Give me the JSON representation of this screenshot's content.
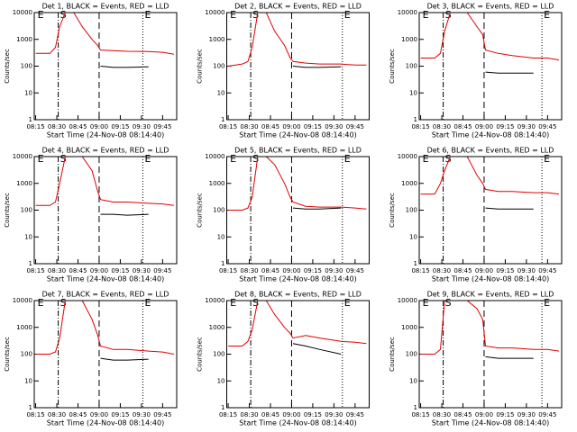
{
  "chart_data": [
    {
      "type": "line",
      "title": "Det 1, BLACK = Events, RED = LLD",
      "ylabel": "Counts/sec",
      "xlabel": "Start Time (24-Nov-08 08:14:40)",
      "ylog": true,
      "ylim": [
        1,
        10000
      ],
      "yticks": [
        1,
        10,
        100,
        1000,
        10000
      ],
      "xlim": [
        "08:14",
        "09:55"
      ],
      "xticks": [
        "08:15",
        "08:30",
        "08:45",
        "09:00",
        "09:15",
        "09:30",
        "09:45"
      ],
      "x": [
        "08:15",
        "08:25",
        "08:29",
        "08:32",
        "08:36",
        "08:42",
        "08:48",
        "08:55",
        "08:59",
        "09:01",
        "09:10",
        "09:20",
        "09:35",
        "09:45",
        "09:53"
      ],
      "series": [
        {
          "color": "#e00000",
          "values": [
            300,
            300,
            500,
            3000,
            10000,
            10000,
            3000,
            1000,
            600,
            400,
            380,
            360,
            350,
            330,
            280
          ]
        },
        {
          "color": "#000000",
          "values": [
            null,
            null,
            null,
            null,
            null,
            null,
            null,
            null,
            null,
            100,
            90,
            90,
            95,
            null,
            null
          ]
        }
      ],
      "markers": [
        {
          "label": "E",
          "x": "08:15"
        },
        {
          "label": "S",
          "x": "08:31"
        },
        {
          "label": "E",
          "x": "09:31"
        }
      ],
      "vlines": [
        {
          "x": "08:31",
          "style": "dashdot"
        },
        {
          "x": "09:00",
          "style": "dashed"
        },
        {
          "x": "09:31",
          "style": "dotted"
        }
      ]
    },
    {
      "type": "line",
      "title": "Det 2, BLACK = Events, RED = LLD",
      "ylabel": "Counts/sec",
      "xlabel": "Start Time (24-Nov-08 08:14:40)",
      "ylog": true,
      "ylim": [
        1,
        10000
      ],
      "yticks": [
        1,
        10,
        100,
        1000,
        10000
      ],
      "xlim": [
        "08:14",
        "09:55"
      ],
      "xticks": [
        "08:15",
        "08:30",
        "08:45",
        "09:00",
        "09:15",
        "09:30",
        "09:45"
      ],
      "x": [
        "08:15",
        "08:25",
        "08:29",
        "08:32",
        "08:36",
        "08:42",
        "08:48",
        "08:55",
        "08:59",
        "09:01",
        "09:10",
        "09:20",
        "09:35",
        "09:45",
        "09:53"
      ],
      "series": [
        {
          "color": "#e00000",
          "values": [
            100,
            120,
            150,
            500,
            10000,
            10000,
            2000,
            600,
            200,
            150,
            130,
            120,
            120,
            110,
            110
          ]
        },
        {
          "color": "#000000",
          "values": [
            null,
            null,
            null,
            null,
            null,
            null,
            null,
            null,
            null,
            100,
            90,
            90,
            95,
            null,
            null
          ]
        }
      ],
      "markers": [
        {
          "label": "E",
          "x": "08:15"
        },
        {
          "label": "S",
          "x": "08:31"
        },
        {
          "label": "E",
          "x": "09:36"
        }
      ],
      "vlines": [
        {
          "x": "08:31",
          "style": "dashdot"
        },
        {
          "x": "09:00",
          "style": "dashed"
        },
        {
          "x": "09:36",
          "style": "dotted"
        }
      ]
    },
    {
      "type": "line",
      "title": "Det 3, BLACK = Events, RED = LLD",
      "ylabel": "Counts/sec",
      "xlabel": "Start Time (24-Nov-08 08:14:40)",
      "ylog": true,
      "ylim": [
        1,
        10000
      ],
      "yticks": [
        1,
        10,
        100,
        1000,
        10000
      ],
      "xlim": [
        "08:14",
        "09:55"
      ],
      "xticks": [
        "08:15",
        "08:30",
        "08:45",
        "09:00",
        "09:15",
        "09:30",
        "09:45"
      ],
      "x": [
        "08:15",
        "08:25",
        "08:29",
        "08:32",
        "08:36",
        "08:42",
        "08:48",
        "08:55",
        "08:59",
        "09:01",
        "09:10",
        "09:20",
        "09:35",
        "09:45",
        "09:53"
      ],
      "series": [
        {
          "color": "#e00000",
          "values": [
            200,
            200,
            300,
            2000,
            10000,
            10000,
            10000,
            3000,
            1500,
            400,
            300,
            250,
            200,
            200,
            170
          ]
        },
        {
          "color": "#000000",
          "values": [
            null,
            null,
            null,
            null,
            null,
            null,
            null,
            null,
            null,
            60,
            55,
            55,
            55,
            null,
            null
          ]
        }
      ],
      "markers": [
        {
          "label": "E",
          "x": "08:15"
        },
        {
          "label": "S",
          "x": "08:31"
        },
        {
          "label": "E",
          "x": "09:41"
        }
      ],
      "vlines": [
        {
          "x": "08:31",
          "style": "dashdot"
        },
        {
          "x": "09:00",
          "style": "dashed"
        },
        {
          "x": "09:41",
          "style": "dotted"
        }
      ]
    },
    {
      "type": "line",
      "title": "Det 4, BLACK = Events, RED = LLD",
      "ylabel": "Counts/sec",
      "xlabel": "Start Time (24-Nov-08 08:14:40)",
      "ylog": true,
      "ylim": [
        1,
        10000
      ],
      "yticks": [
        1,
        10,
        100,
        1000,
        10000
      ],
      "xlim": [
        "08:14",
        "09:55"
      ],
      "xticks": [
        "08:15",
        "08:30",
        "08:45",
        "09:00",
        "09:15",
        "09:30",
        "09:45"
      ],
      "x": [
        "08:15",
        "08:25",
        "08:29",
        "08:32",
        "08:36",
        "08:42",
        "08:48",
        "08:55",
        "08:59",
        "09:01",
        "09:10",
        "09:20",
        "09:35",
        "09:45",
        "09:53"
      ],
      "series": [
        {
          "color": "#e00000",
          "values": [
            150,
            150,
            200,
            1000,
            10000,
            10000,
            10000,
            3000,
            500,
            250,
            200,
            200,
            180,
            170,
            150
          ]
        },
        {
          "color": "#000000",
          "values": [
            null,
            null,
            null,
            null,
            null,
            null,
            null,
            null,
            null,
            70,
            70,
            65,
            70,
            null,
            null
          ]
        }
      ],
      "markers": [
        {
          "label": "E",
          "x": "08:15"
        },
        {
          "label": "S",
          "x": "08:31"
        },
        {
          "label": "E",
          "x": "09:31"
        }
      ],
      "vlines": [
        {
          "x": "08:31",
          "style": "dashdot"
        },
        {
          "x": "09:00",
          "style": "dashed"
        },
        {
          "x": "09:31",
          "style": "dotted"
        }
      ]
    },
    {
      "type": "line",
      "title": "Det 5, BLACK = Events, RED = LLD",
      "ylabel": "Counts/sec",
      "xlabel": "Start Time (24-Nov-08 08:14:40)",
      "ylog": true,
      "ylim": [
        1,
        10000
      ],
      "yticks": [
        1,
        10,
        100,
        1000,
        10000
      ],
      "xlim": [
        "08:14",
        "09:55"
      ],
      "xticks": [
        "08:15",
        "08:30",
        "08:45",
        "09:00",
        "09:15",
        "09:30",
        "09:45"
      ],
      "x": [
        "08:15",
        "08:25",
        "08:29",
        "08:32",
        "08:36",
        "08:42",
        "08:48",
        "08:55",
        "08:59",
        "09:01",
        "09:10",
        "09:20",
        "09:35",
        "09:45",
        "09:53"
      ],
      "series": [
        {
          "color": "#e00000",
          "values": [
            100,
            100,
            120,
            300,
            10000,
            10000,
            5000,
            1000,
            300,
            200,
            140,
            130,
            130,
            120,
            110
          ]
        },
        {
          "color": "#000000",
          "values": [
            null,
            null,
            null,
            null,
            null,
            null,
            null,
            null,
            null,
            120,
            110,
            110,
            120,
            null,
            null
          ]
        }
      ],
      "markers": [
        {
          "label": "E",
          "x": "08:15"
        },
        {
          "label": "S",
          "x": "08:31"
        },
        {
          "label": "E",
          "x": "09:36"
        }
      ],
      "vlines": [
        {
          "x": "08:31",
          "style": "dashdot"
        },
        {
          "x": "09:00",
          "style": "dashed"
        },
        {
          "x": "09:36",
          "style": "dotted"
        }
      ]
    },
    {
      "type": "line",
      "title": "Det 6, BLACK = Events, RED = LLD",
      "ylabel": "Counts/sec",
      "xlabel": "Start Time (24-Nov-08 08:14:40)",
      "ylog": true,
      "ylim": [
        1,
        10000
      ],
      "yticks": [
        1,
        10,
        100,
        1000,
        10000
      ],
      "xlim": [
        "08:14",
        "09:55"
      ],
      "xticks": [
        "08:15",
        "08:30",
        "08:45",
        "09:00",
        "09:15",
        "09:30",
        "09:45"
      ],
      "x": [
        "08:15",
        "08:25",
        "08:29",
        "08:32",
        "08:36",
        "08:42",
        "08:48",
        "08:55",
        "08:59",
        "09:01",
        "09:10",
        "09:20",
        "09:35",
        "09:45",
        "09:53"
      ],
      "series": [
        {
          "color": "#e00000",
          "values": [
            400,
            400,
            1000,
            3000,
            10000,
            10000,
            10000,
            2000,
            1000,
            600,
            500,
            500,
            450,
            450,
            400
          ]
        },
        {
          "color": "#000000",
          "values": [
            null,
            null,
            null,
            null,
            null,
            null,
            null,
            null,
            null,
            120,
            110,
            110,
            110,
            null,
            null
          ]
        }
      ],
      "markers": [
        {
          "label": "E",
          "x": "08:15"
        },
        {
          "label": "S",
          "x": "08:31"
        },
        {
          "label": "E",
          "x": "09:41"
        }
      ],
      "vlines": [
        {
          "x": "08:31",
          "style": "dashdot"
        },
        {
          "x": "09:00",
          "style": "dashed"
        },
        {
          "x": "09:41",
          "style": "dotted"
        }
      ]
    },
    {
      "type": "line",
      "title": "Det 7, BLACK = Events, RED = LLD",
      "ylabel": "Counts/sec",
      "xlabel": "Start Time (24-Nov-08 08:14:40)",
      "ylog": true,
      "ylim": [
        1,
        10000
      ],
      "yticks": [
        1,
        10,
        100,
        1000,
        10000
      ],
      "xlim": [
        "08:14",
        "09:55"
      ],
      "xticks": [
        "08:15",
        "08:30",
        "08:45",
        "09:00",
        "09:15",
        "09:30",
        "09:45"
      ],
      "x": [
        "08:15",
        "08:25",
        "08:29",
        "08:32",
        "08:36",
        "08:42",
        "08:48",
        "08:55",
        "08:59",
        "09:01",
        "09:10",
        "09:20",
        "09:35",
        "09:45",
        "09:53"
      ],
      "series": [
        {
          "color": "#e00000",
          "values": [
            100,
            100,
            120,
            400,
            10000,
            10000,
            10000,
            2000,
            500,
            200,
            150,
            150,
            130,
            120,
            100
          ]
        },
        {
          "color": "#000000",
          "values": [
            null,
            null,
            null,
            null,
            null,
            null,
            null,
            null,
            null,
            70,
            60,
            60,
            65,
            null,
            null
          ]
        }
      ],
      "markers": [
        {
          "label": "E",
          "x": "08:15"
        },
        {
          "label": "S",
          "x": "08:31"
        },
        {
          "label": "E",
          "x": "09:31"
        }
      ],
      "vlines": [
        {
          "x": "08:31",
          "style": "dashdot"
        },
        {
          "x": "09:00",
          "style": "dashed"
        },
        {
          "x": "09:31",
          "style": "dotted"
        }
      ]
    },
    {
      "type": "line",
      "title": "Det 8, BLACK = Events, RED = LLD",
      "ylabel": "Counts/sec",
      "xlabel": "Start Time (24-Nov-08 08:14:40)",
      "ylog": true,
      "ylim": [
        1,
        10000
      ],
      "yticks": [
        1,
        10,
        100,
        1000,
        10000
      ],
      "xlim": [
        "08:14",
        "09:55"
      ],
      "xticks": [
        "08:15",
        "08:30",
        "08:45",
        "09:00",
        "09:15",
        "09:30",
        "09:45"
      ],
      "x": [
        "08:15",
        "08:25",
        "08:29",
        "08:32",
        "08:36",
        "08:42",
        "08:48",
        "08:55",
        "08:59",
        "09:01",
        "09:10",
        "09:20",
        "09:35",
        "09:45",
        "09:53"
      ],
      "series": [
        {
          "color": "#e00000",
          "values": [
            200,
            200,
            300,
            800,
            10000,
            10000,
            3000,
            1000,
            600,
            400,
            500,
            400,
            300,
            280,
            250
          ]
        },
        {
          "color": "#000000",
          "values": [
            null,
            null,
            null,
            null,
            null,
            null,
            null,
            null,
            null,
            250,
            200,
            150,
            100,
            null,
            null
          ]
        }
      ],
      "markers": [
        {
          "label": "E",
          "x": "08:15"
        },
        {
          "label": "S",
          "x": "08:31"
        },
        {
          "label": "E",
          "x": "09:36"
        }
      ],
      "vlines": [
        {
          "x": "08:31",
          "style": "dashdot"
        },
        {
          "x": "09:00",
          "style": "dashed"
        },
        {
          "x": "09:36",
          "style": "dotted"
        }
      ]
    },
    {
      "type": "line",
      "title": "Det 9, BLACK = Events, RED = LLD",
      "ylabel": "Counts/sec",
      "xlabel": "Start Time (24-Nov-08 08:14:40)",
      "ylog": true,
      "ylim": [
        1,
        10000
      ],
      "yticks": [
        1,
        10,
        100,
        1000,
        10000
      ],
      "xlim": [
        "08:14",
        "09:55"
      ],
      "xticks": [
        "08:15",
        "08:30",
        "08:45",
        "09:00",
        "09:15",
        "09:30",
        "09:45"
      ],
      "x": [
        "08:15",
        "08:25",
        "08:29",
        "08:32",
        "08:36",
        "08:42",
        "08:48",
        "08:55",
        "08:59",
        "09:01",
        "09:10",
        "09:20",
        "09:35",
        "09:45",
        "09:53"
      ],
      "series": [
        {
          "color": "#e00000",
          "values": [
            100,
            100,
            150,
            10000,
            10000,
            10000,
            10000,
            5000,
            2000,
            200,
            170,
            170,
            150,
            150,
            130
          ]
        },
        {
          "color": "#000000",
          "values": [
            null,
            null,
            null,
            null,
            null,
            null,
            null,
            null,
            null,
            80,
            70,
            70,
            70,
            null,
            null
          ]
        }
      ],
      "markers": [
        {
          "label": "E",
          "x": "08:15"
        },
        {
          "label": "S",
          "x": "08:31"
        },
        {
          "label": "E",
          "x": "09:41"
        }
      ],
      "vlines": [
        {
          "x": "08:31",
          "style": "dashdot"
        },
        {
          "x": "09:00",
          "style": "dashed"
        },
        {
          "x": "09:41",
          "style": "dotted"
        }
      ]
    }
  ]
}
